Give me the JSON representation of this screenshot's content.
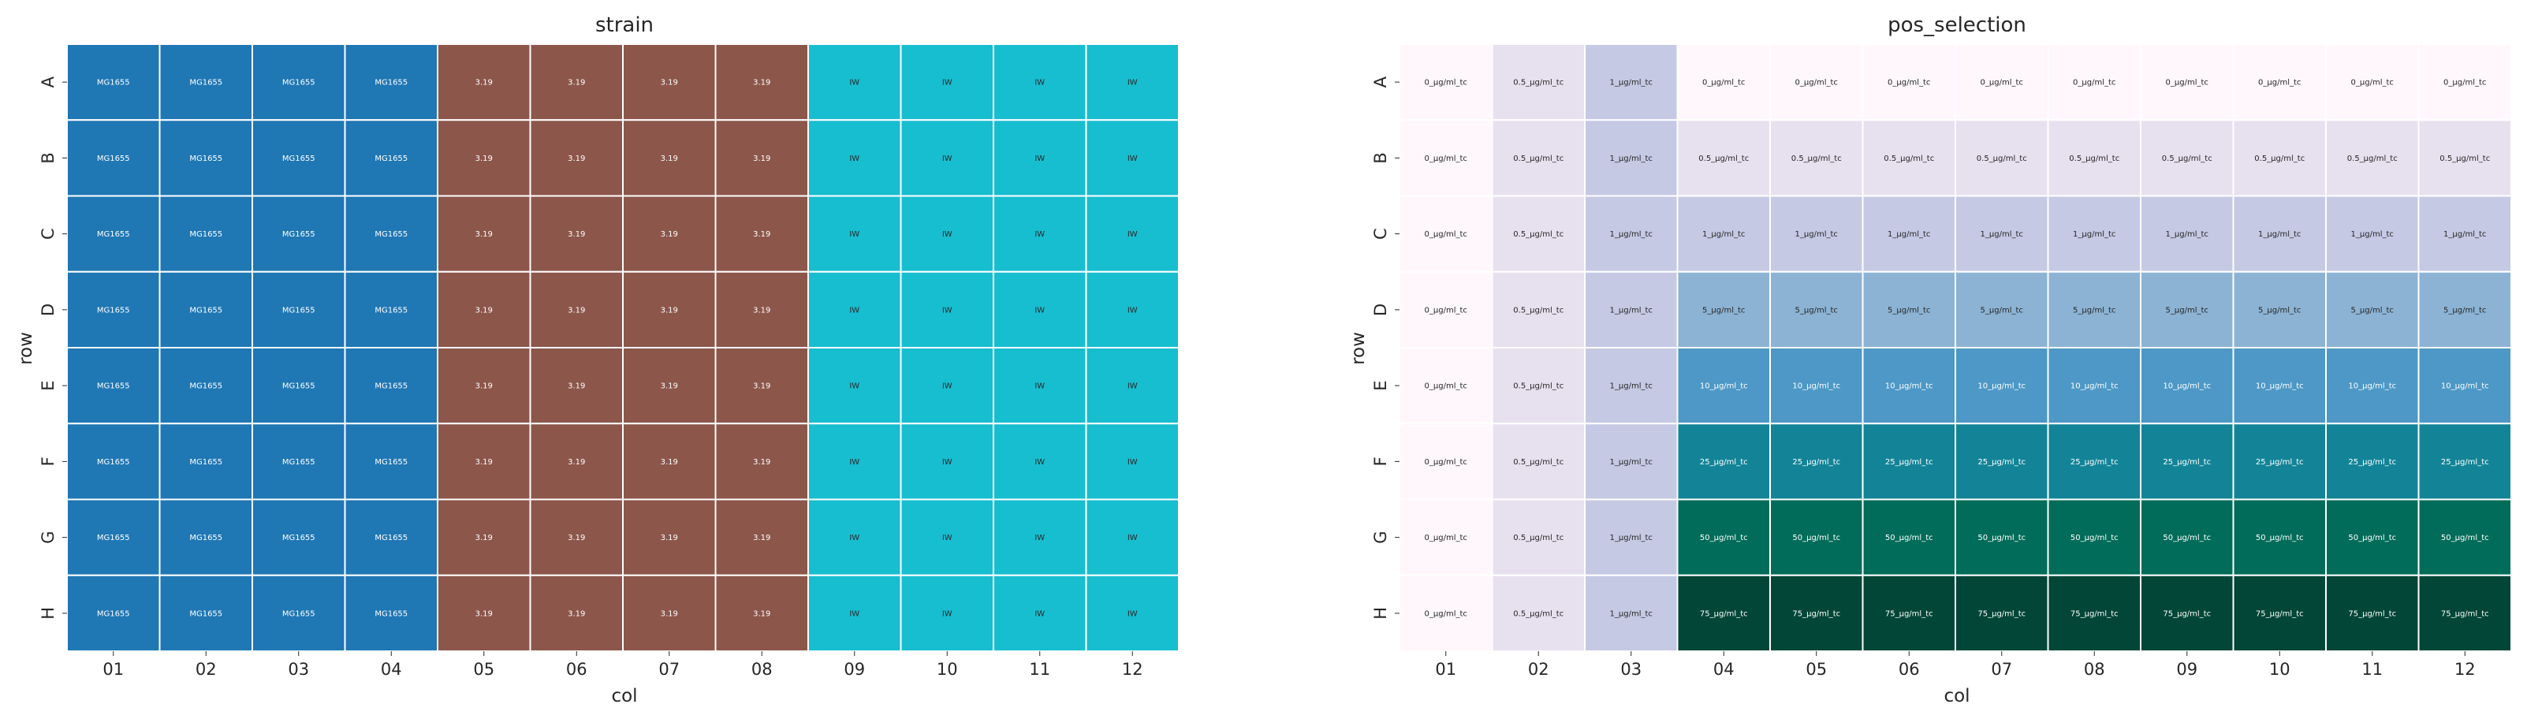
{
  "chart_data": [
    {
      "type": "heatmap",
      "title": "strain",
      "xlabel": "col",
      "ylabel": "row",
      "rows": [
        "A",
        "B",
        "C",
        "D",
        "E",
        "F",
        "G",
        "H"
      ],
      "cols": [
        "01",
        "02",
        "03",
        "04",
        "05",
        "06",
        "07",
        "08",
        "09",
        "10",
        "11",
        "12"
      ],
      "color_map": {
        "MG1655": "#1f77b4",
        "3.19": "#8c564b",
        "IW": "#17becf"
      },
      "text_colors": {
        "MG1655": "#ffffff",
        "3.19": "#ffffff",
        "IW": "#262626"
      },
      "values": [
        [
          "MG1655",
          "MG1655",
          "MG1655",
          "MG1655",
          "3.19",
          "3.19",
          "3.19",
          "3.19",
          "IW",
          "IW",
          "IW",
          "IW"
        ],
        [
          "MG1655",
          "MG1655",
          "MG1655",
          "MG1655",
          "3.19",
          "3.19",
          "3.19",
          "3.19",
          "IW",
          "IW",
          "IW",
          "IW"
        ],
        [
          "MG1655",
          "MG1655",
          "MG1655",
          "MG1655",
          "3.19",
          "3.19",
          "3.19",
          "3.19",
          "IW",
          "IW",
          "IW",
          "IW"
        ],
        [
          "MG1655",
          "MG1655",
          "MG1655",
          "MG1655",
          "3.19",
          "3.19",
          "3.19",
          "3.19",
          "IW",
          "IW",
          "IW",
          "IW"
        ],
        [
          "MG1655",
          "MG1655",
          "MG1655",
          "MG1655",
          "3.19",
          "3.19",
          "3.19",
          "3.19",
          "IW",
          "IW",
          "IW",
          "IW"
        ],
        [
          "MG1655",
          "MG1655",
          "MG1655",
          "MG1655",
          "3.19",
          "3.19",
          "3.19",
          "3.19",
          "IW",
          "IW",
          "IW",
          "IW"
        ],
        [
          "MG1655",
          "MG1655",
          "MG1655",
          "MG1655",
          "3.19",
          "3.19",
          "3.19",
          "3.19",
          "IW",
          "IW",
          "IW",
          "IW"
        ],
        [
          "MG1655",
          "MG1655",
          "MG1655",
          "MG1655",
          "3.19",
          "3.19",
          "3.19",
          "3.19",
          "IW",
          "IW",
          "IW",
          "IW"
        ]
      ]
    },
    {
      "type": "heatmap",
      "title": "pos_selection",
      "xlabel": "col",
      "ylabel": "row",
      "rows": [
        "A",
        "B",
        "C",
        "D",
        "E",
        "F",
        "G",
        "H"
      ],
      "cols": [
        "01",
        "02",
        "03",
        "04",
        "05",
        "06",
        "07",
        "08",
        "09",
        "10",
        "11",
        "12"
      ],
      "color_map": {
        "0_µg/ml_tc": "#fff7fb",
        "0.5_µg/ml_tc": "#e7e1ef",
        "1_µg/ml_tc": "#c5c9e4",
        "5_µg/ml_tc": "#8cb3d4",
        "10_µg/ml_tc": "#4d98c6",
        "25_µg/ml_tc": "#138497",
        "50_µg/ml_tc": "#016c59",
        "75_µg/ml_tc": "#014636"
      },
      "text_colors": {
        "0_µg/ml_tc": "#262626",
        "0.5_µg/ml_tc": "#262626",
        "1_µg/ml_tc": "#262626",
        "5_µg/ml_tc": "#262626",
        "10_µg/ml_tc": "#ffffff",
        "25_µg/ml_tc": "#ffffff",
        "50_µg/ml_tc": "#ffffff",
        "75_µg/ml_tc": "#ffffff"
      },
      "values": [
        [
          "0_µg/ml_tc",
          "0.5_µg/ml_tc",
          "1_µg/ml_tc",
          "0_µg/ml_tc",
          "0_µg/ml_tc",
          "0_µg/ml_tc",
          "0_µg/ml_tc",
          "0_µg/ml_tc",
          "0_µg/ml_tc",
          "0_µg/ml_tc",
          "0_µg/ml_tc",
          "0_µg/ml_tc"
        ],
        [
          "0_µg/ml_tc",
          "0.5_µg/ml_tc",
          "1_µg/ml_tc",
          "0.5_µg/ml_tc",
          "0.5_µg/ml_tc",
          "0.5_µg/ml_tc",
          "0.5_µg/ml_tc",
          "0.5_µg/ml_tc",
          "0.5_µg/ml_tc",
          "0.5_µg/ml_tc",
          "0.5_µg/ml_tc",
          "0.5_µg/ml_tc"
        ],
        [
          "0_µg/ml_tc",
          "0.5_µg/ml_tc",
          "1_µg/ml_tc",
          "1_µg/ml_tc",
          "1_µg/ml_tc",
          "1_µg/ml_tc",
          "1_µg/ml_tc",
          "1_µg/ml_tc",
          "1_µg/ml_tc",
          "1_µg/ml_tc",
          "1_µg/ml_tc",
          "1_µg/ml_tc"
        ],
        [
          "0_µg/ml_tc",
          "0.5_µg/ml_tc",
          "1_µg/ml_tc",
          "5_µg/ml_tc",
          "5_µg/ml_tc",
          "5_µg/ml_tc",
          "5_µg/ml_tc",
          "5_µg/ml_tc",
          "5_µg/ml_tc",
          "5_µg/ml_tc",
          "5_µg/ml_tc",
          "5_µg/ml_tc"
        ],
        [
          "0_µg/ml_tc",
          "0.5_µg/ml_tc",
          "1_µg/ml_tc",
          "10_µg/ml_tc",
          "10_µg/ml_tc",
          "10_µg/ml_tc",
          "10_µg/ml_tc",
          "10_µg/ml_tc",
          "10_µg/ml_tc",
          "10_µg/ml_tc",
          "10_µg/ml_tc",
          "10_µg/ml_tc"
        ],
        [
          "0_µg/ml_tc",
          "0.5_µg/ml_tc",
          "1_µg/ml_tc",
          "25_µg/ml_tc",
          "25_µg/ml_tc",
          "25_µg/ml_tc",
          "25_µg/ml_tc",
          "25_µg/ml_tc",
          "25_µg/ml_tc",
          "25_µg/ml_tc",
          "25_µg/ml_tc",
          "25_µg/ml_tc"
        ],
        [
          "0_µg/ml_tc",
          "0.5_µg/ml_tc",
          "1_µg/ml_tc",
          "50_µg/ml_tc",
          "50_µg/ml_tc",
          "50_µg/ml_tc",
          "50_µg/ml_tc",
          "50_µg/ml_tc",
          "50_µg/ml_tc",
          "50_µg/ml_tc",
          "50_µg/ml_tc",
          "50_µg/ml_tc"
        ],
        [
          "0_µg/ml_tc",
          "0.5_µg/ml_tc",
          "1_µg/ml_tc",
          "75_µg/ml_tc",
          "75_µg/ml_tc",
          "75_µg/ml_tc",
          "75_µg/ml_tc",
          "75_µg/ml_tc",
          "75_µg/ml_tc",
          "75_µg/ml_tc",
          "75_µg/ml_tc",
          "75_µg/ml_tc"
        ]
      ]
    }
  ]
}
